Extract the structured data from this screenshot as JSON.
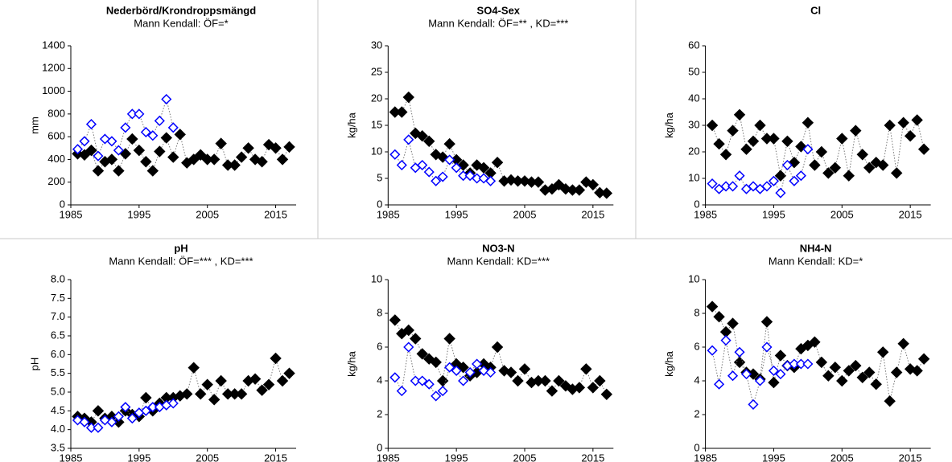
{
  "chart_data": [
    {
      "type": "scatter",
      "title": "Nederbörd/Krondroppsmängd",
      "subtitle": "Mann Kendall: ÖF=*",
      "y_label": "mm",
      "xlim": [
        1985,
        2018
      ],
      "xticks": [
        1985,
        1995,
        2005,
        2015
      ],
      "ylim": [
        0,
        1400
      ],
      "yticks": [
        0,
        200,
        400,
        600,
        800,
        1000,
        1200,
        1400
      ],
      "series": [
        {
          "color": "#000000",
          "x": [
            1986,
            1987,
            1988,
            1989,
            1990,
            1991,
            1992,
            1993,
            1994,
            1995,
            1996,
            1997,
            1998,
            1999,
            2000,
            2001,
            2002,
            2003,
            2004,
            2005,
            2006,
            2007,
            2008,
            2009,
            2010,
            2011,
            2012,
            2013,
            2014,
            2015,
            2016,
            2017
          ],
          "values": [
            450,
            440,
            480,
            300,
            380,
            400,
            300,
            450,
            580,
            480,
            380,
            300,
            470,
            590,
            420,
            620,
            370,
            400,
            440,
            400,
            400,
            540,
            350,
            350,
            420,
            500,
            400,
            380,
            530,
            500,
            400,
            510
          ]
        },
        {
          "color": "#0000ff",
          "x": [
            1986,
            1987,
            1988,
            1989,
            1990,
            1991,
            1992,
            1993,
            1994,
            1995,
            1996,
            1997,
            1998,
            1999,
            2000
          ],
          "values": [
            490,
            560,
            710,
            430,
            580,
            560,
            480,
            680,
            800,
            800,
            640,
            610,
            740,
            930,
            680
          ]
        }
      ]
    },
    {
      "type": "scatter",
      "title": "SO4-Sex",
      "subtitle": "Mann Kendall: ÖF=** , KD=***",
      "y_label": "kg/ha",
      "xlim": [
        1985,
        2018
      ],
      "xticks": [
        1985,
        1995,
        2005,
        2015
      ],
      "ylim": [
        0,
        30
      ],
      "yticks": [
        0,
        5,
        10,
        15,
        20,
        25,
        30
      ],
      "series": [
        {
          "color": "#000000",
          "x": [
            1986,
            1987,
            1988,
            1989,
            1990,
            1991,
            1992,
            1993,
            1994,
            1995,
            1996,
            1997,
            1998,
            1999,
            2000,
            2001,
            2002,
            2003,
            2004,
            2005,
            2006,
            2007,
            2008,
            2009,
            2010,
            2011,
            2012,
            2013,
            2014,
            2015,
            2016,
            2017
          ],
          "values": [
            17.5,
            17.5,
            20.3,
            13.5,
            13,
            12,
            9.5,
            9,
            11.5,
            8.5,
            7.5,
            6,
            7.5,
            7,
            6,
            8,
            4.5,
            4.7,
            4.5,
            4.5,
            4.3,
            4.3,
            2.8,
            3,
            3.8,
            3,
            2.8,
            2.8,
            4.3,
            3.8,
            2.3,
            2.2
          ]
        },
        {
          "color": "#0000ff",
          "x": [
            1986,
            1987,
            1988,
            1989,
            1990,
            1991,
            1992,
            1993,
            1994,
            1995,
            1996,
            1997,
            1998,
            1999,
            2000
          ],
          "values": [
            9.5,
            7.5,
            12.3,
            7,
            7.5,
            6.2,
            4.5,
            5.3,
            8.5,
            7,
            5.5,
            5.5,
            5,
            5,
            4.5
          ]
        }
      ]
    },
    {
      "type": "scatter",
      "title": "Cl",
      "y_label": "kg/ha",
      "xlim": [
        1985,
        2018
      ],
      "xticks": [
        1985,
        1995,
        2005,
        2015
      ],
      "ylim": [
        0,
        60
      ],
      "yticks": [
        0,
        10,
        20,
        30,
        40,
        50,
        60
      ],
      "series": [
        {
          "color": "#000000",
          "x": [
            1986,
            1987,
            1988,
            1989,
            1990,
            1991,
            1992,
            1993,
            1994,
            1995,
            1996,
            1997,
            1998,
            1999,
            2000,
            2001,
            2002,
            2003,
            2004,
            2005,
            2006,
            2007,
            2008,
            2009,
            2010,
            2011,
            2012,
            2013,
            2014,
            2015,
            2016,
            2017
          ],
          "values": [
            30,
            23,
            19,
            28,
            34,
            21,
            24,
            30,
            25,
            25,
            11,
            24,
            16,
            22,
            31,
            15,
            20,
            12,
            14,
            25,
            11,
            28,
            19,
            14,
            16,
            15,
            30,
            12,
            31,
            26,
            32,
            21
          ]
        },
        {
          "color": "#0000ff",
          "x": [
            1986,
            1987,
            1988,
            1989,
            1990,
            1991,
            1992,
            1993,
            1994,
            1995,
            1996,
            1997,
            1998,
            1999,
            2000
          ],
          "values": [
            8,
            6,
            7,
            7,
            11,
            6,
            7,
            6,
            7,
            9,
            4.5,
            15,
            9,
            11,
            21
          ]
        }
      ]
    },
    {
      "type": "scatter",
      "title": "pH",
      "subtitle": "Mann Kendall: ÖF=*** , KD=***",
      "y_label": "pH",
      "xlim": [
        1985,
        2018
      ],
      "xticks": [
        1985,
        1995,
        2005,
        2015
      ],
      "ylim": [
        3.5,
        8
      ],
      "yticks": [
        3.5,
        {
          "value": 4,
          "label": "4.0"
        },
        4.5,
        {
          "value": 5,
          "label": "5.0"
        },
        5.5,
        {
          "value": 6,
          "label": "6.0"
        },
        6.5,
        {
          "value": 7,
          "label": "7.0"
        },
        7.5,
        {
          "value": 8,
          "label": "8.0"
        }
      ],
      "series": [
        {
          "color": "#000000",
          "x": [
            1986,
            1987,
            1988,
            1989,
            1990,
            1991,
            1992,
            1993,
            1994,
            1995,
            1996,
            1997,
            1998,
            1999,
            2000,
            2001,
            2002,
            2003,
            2004,
            2005,
            2006,
            2007,
            2008,
            2009,
            2010,
            2011,
            2012,
            2013,
            2014,
            2015,
            2016,
            2017
          ],
          "values": [
            4.35,
            4.3,
            4.2,
            4.5,
            4.3,
            4.35,
            4.2,
            4.5,
            4.4,
            4.35,
            4.85,
            4.5,
            4.7,
            4.85,
            4.85,
            4.9,
            4.95,
            5.65,
            4.95,
            5.2,
            4.8,
            5.3,
            4.95,
            4.95,
            4.95,
            5.3,
            5.35,
            5.05,
            5.2,
            5.9,
            5.3,
            5.5
          ]
        },
        {
          "color": "#0000ff",
          "x": [
            1986,
            1987,
            1988,
            1989,
            1990,
            1991,
            1992,
            1993,
            1994,
            1995,
            1996,
            1997,
            1998,
            1999,
            2000
          ],
          "values": [
            4.25,
            4.2,
            4.05,
            4.05,
            4.25,
            4.2,
            4.35,
            4.6,
            4.3,
            4.45,
            4.5,
            4.6,
            4.6,
            4.65,
            4.7
          ]
        }
      ]
    },
    {
      "type": "scatter",
      "title": "NO3-N",
      "subtitle": "Mann Kendall: KD=***",
      "y_label": "kg/ha",
      "xlim": [
        1985,
        2018
      ],
      "xticks": [
        1985,
        1995,
        2005,
        2015
      ],
      "ylim": [
        0,
        10
      ],
      "yticks": [
        0,
        2,
        4,
        6,
        8,
        10
      ],
      "series": [
        {
          "color": "#000000",
          "x": [
            1986,
            1987,
            1988,
            1989,
            1990,
            1991,
            1992,
            1993,
            1994,
            1995,
            1996,
            1997,
            1998,
            1999,
            2000,
            2001,
            2002,
            2003,
            2004,
            2005,
            2006,
            2007,
            2008,
            2009,
            2010,
            2011,
            2012,
            2013,
            2014,
            2015,
            2016,
            2017
          ],
          "values": [
            7.6,
            6.8,
            7,
            6.5,
            5.6,
            5.3,
            5.1,
            4,
            6.5,
            5,
            4.8,
            4.3,
            4.5,
            5,
            4.8,
            6,
            4.6,
            4.5,
            4,
            4.7,
            3.9,
            4,
            4,
            3.4,
            4,
            3.7,
            3.5,
            3.6,
            4.7,
            3.6,
            4,
            3.2
          ]
        },
        {
          "color": "#0000ff",
          "x": [
            1986,
            1987,
            1988,
            1989,
            1990,
            1991,
            1992,
            1993,
            1994,
            1995,
            1996,
            1997,
            1998,
            1999,
            2000
          ],
          "values": [
            4.2,
            3.4,
            6,
            4,
            4,
            3.8,
            3.1,
            3.4,
            4.8,
            4.6,
            4,
            4.5,
            5,
            4.6,
            4.5
          ]
        }
      ]
    },
    {
      "type": "scatter",
      "title": "NH4-N",
      "subtitle": "Mann Kendall: KD=*",
      "y_label": "kg/ha",
      "xlim": [
        1985,
        2018
      ],
      "xticks": [
        1985,
        1995,
        2005,
        2015
      ],
      "ylim": [
        0,
        10
      ],
      "yticks": [
        0,
        2,
        4,
        6,
        8,
        10
      ],
      "series": [
        {
          "color": "#000000",
          "x": [
            1986,
            1987,
            1988,
            1989,
            1990,
            1991,
            1992,
            1993,
            1994,
            1995,
            1996,
            1997,
            1998,
            1999,
            2000,
            2001,
            2002,
            2003,
            2004,
            2005,
            2006,
            2007,
            2008,
            2009,
            2010,
            2011,
            2012,
            2013,
            2014,
            2015,
            2016,
            2017
          ],
          "values": [
            8.4,
            7.8,
            6.9,
            7.4,
            5.1,
            4.5,
            4.4,
            4.1,
            7.5,
            3.9,
            5.5,
            4.9,
            4.8,
            5.9,
            6.1,
            6.3,
            5.1,
            4.3,
            4.8,
            4,
            4.6,
            4.9,
            4.2,
            4.5,
            3.8,
            5.7,
            2.8,
            4.5,
            6.2,
            4.7,
            4.6,
            5.3
          ]
        },
        {
          "color": "#0000ff",
          "x": [
            1986,
            1987,
            1988,
            1989,
            1990,
            1991,
            1992,
            1993,
            1994,
            1995,
            1996,
            1997,
            1998,
            1999,
            2000
          ],
          "values": [
            5.8,
            3.8,
            6.4,
            4.3,
            5.7,
            4.4,
            2.6,
            4,
            6,
            4.6,
            4.4,
            4.9,
            5,
            5,
            5
          ]
        }
      ]
    }
  ]
}
